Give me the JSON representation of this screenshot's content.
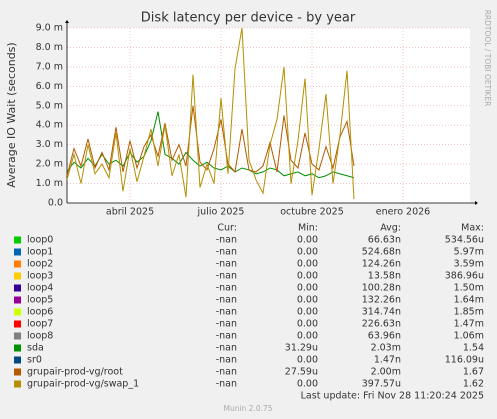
{
  "chart_data": {
    "type": "line",
    "title": "Disk latency per device - by year",
    "y_label": "Average IO Wait (seconds)",
    "watermark": "RRDTOOL / TOBI OETIKER",
    "legend_headers": [
      "Cur:",
      "Min:",
      "Avg:",
      "Max:"
    ],
    "last_update": "Last update: Fri Nov 28 11:20:24 2025",
    "footer": "Munin 2.0.75",
    "grid": true,
    "ylim": [
      0,
      0.009
    ],
    "yticks": [
      {
        "value": 0,
        "label": "0.0"
      },
      {
        "value": 0.001,
        "label": "1.0 m"
      },
      {
        "value": 0.002,
        "label": "2.0 m"
      },
      {
        "value": 0.003,
        "label": "3.0 m"
      },
      {
        "value": 0.004,
        "label": "4.0 m"
      },
      {
        "value": 0.005,
        "label": "5.0 m"
      },
      {
        "value": 0.006,
        "label": "6.0 m"
      },
      {
        "value": 0.007,
        "label": "7.0 m"
      },
      {
        "value": 0.008,
        "label": "8.0 m"
      },
      {
        "value": 0.009,
        "label": "9.0 m"
      }
    ],
    "categories": [
      null,
      null,
      null,
      null,
      null,
      null,
      null,
      null,
      null,
      "abril 2025",
      null,
      null,
      null,
      null,
      null,
      null,
      null,
      null,
      null,
      null,
      null,
      null,
      "julio 2025",
      null,
      null,
      null,
      null,
      null,
      null,
      null,
      null,
      null,
      null,
      null,
      null,
      "octubre 2025",
      null,
      null,
      null,
      null,
      null,
      null,
      null,
      null,
      null,
      null,
      null,
      null,
      "enero 2026",
      null,
      null,
      null,
      null,
      null,
      null,
      null,
      null,
      null
    ],
    "series": [
      {
        "name": "loop0",
        "color": "#00cc00",
        "cur": "-nan",
        "min": "0.00",
        "avg": "66.63n",
        "max": "534.56u"
      },
      {
        "name": "loop1",
        "color": "#0066b3",
        "cur": "-nan",
        "min": "0.00",
        "avg": "524.68n",
        "max": "5.97m"
      },
      {
        "name": "loop2",
        "color": "#ff8000",
        "cur": "-nan",
        "min": "0.00",
        "avg": "124.26n",
        "max": "3.59m"
      },
      {
        "name": "loop3",
        "color": "#ffcc00",
        "cur": "-nan",
        "min": "0.00",
        "avg": "13.58n",
        "max": "386.96u"
      },
      {
        "name": "loop4",
        "color": "#330099",
        "cur": "-nan",
        "min": "0.00",
        "avg": "100.28n",
        "max": "1.50m"
      },
      {
        "name": "loop5",
        "color": "#990099",
        "cur": "-nan",
        "min": "0.00",
        "avg": "132.26n",
        "max": "1.64m"
      },
      {
        "name": "loop6",
        "color": "#ccff00",
        "cur": "-nan",
        "min": "0.00",
        "avg": "314.74n",
        "max": "1.85m"
      },
      {
        "name": "loop7",
        "color": "#ff0000",
        "cur": "-nan",
        "min": "0.00",
        "avg": "226.63n",
        "max": "1.47m"
      },
      {
        "name": "loop8",
        "color": "#808080",
        "cur": "-nan",
        "min": "0.00",
        "avg": "63.96n",
        "max": "1.06m"
      },
      {
        "name": "sda",
        "color": "#008f00",
        "cur": "-nan",
        "min": "31.29u",
        "avg": "2.03m",
        "max": "1.54",
        "values": [
          0.0016,
          0.0021,
          0.0018,
          0.0023,
          0.0019,
          0.0025,
          0.002,
          0.0022,
          0.0019,
          0.0026,
          0.0021,
          0.0024,
          0.0032,
          0.0047,
          0.0025,
          0.0023,
          0.002,
          0.0026,
          0.0022,
          0.0019,
          0.0021,
          0.0018,
          0.0017,
          0.0019,
          0.0016,
          0.0018,
          0.0017,
          0.0015,
          0.0016,
          0.0018,
          0.0017,
          0.0014,
          0.0015,
          0.0016,
          0.0014,
          0.0015,
          0.0013,
          0.0014,
          0.0016,
          0.0015,
          0.0014,
          0.0013,
          null,
          null,
          null,
          null,
          null,
          null,
          null,
          null,
          null,
          null,
          null,
          null,
          null,
          null,
          null,
          null
        ]
      },
      {
        "name": "sr0",
        "color": "#00487d",
        "cur": "-nan",
        "min": "0.00",
        "avg": "1.47n",
        "max": "116.09u"
      },
      {
        "name": "grupair-prod-vg/root",
        "color": "#b35a00",
        "cur": "-nan",
        "min": "27.59u",
        "avg": "2.00m",
        "max": "1.67",
        "values": [
          0.0014,
          0.0028,
          0.0019,
          0.0033,
          0.0018,
          0.0026,
          0.0017,
          0.0039,
          0.0016,
          0.0032,
          0.0018,
          0.0029,
          0.0035,
          0.0024,
          0.0041,
          0.0022,
          0.003,
          0.0019,
          0.005,
          0.0021,
          0.0017,
          0.0028,
          0.0043,
          0.002,
          0.0016,
          0.0038,
          0.0017,
          0.0016,
          0.0019,
          0.0031,
          0.0016,
          0.0045,
          0.0022,
          0.0018,
          0.0036,
          0.002,
          0.0017,
          0.0029,
          0.0018,
          0.0034,
          0.0042,
          0.0019,
          null,
          null,
          null,
          null,
          null,
          null,
          null,
          null,
          null,
          null,
          null,
          null,
          null,
          null,
          null,
          null
        ]
      },
      {
        "name": "grupair-prod-vg/swap_1",
        "color": "#b38f00",
        "cur": "-nan",
        "min": "0.00",
        "avg": "397.57u",
        "max": "1.62",
        "values": [
          0.0012,
          0.0025,
          0.001,
          0.003,
          0.0015,
          0.002,
          0.0013,
          0.0036,
          0.0006,
          0.0028,
          0.0011,
          0.0024,
          0.0038,
          0.0019,
          0.004,
          0.0014,
          0.0025,
          0.0003,
          0.0066,
          0.0008,
          0.002,
          0.001,
          0.0054,
          0.0015,
          0.0069,
          0.009,
          0.0022,
          0.0012,
          0.0005,
          0.003,
          0.0043,
          0.007,
          0.001,
          0.0032,
          0.0064,
          0.0004,
          0.0028,
          0.0056,
          0.001,
          0.0035,
          0.0068,
          0.0002,
          null,
          null,
          null,
          null,
          null,
          null,
          null,
          null,
          null,
          null,
          null,
          null,
          null,
          null,
          null,
          null
        ]
      }
    ]
  }
}
